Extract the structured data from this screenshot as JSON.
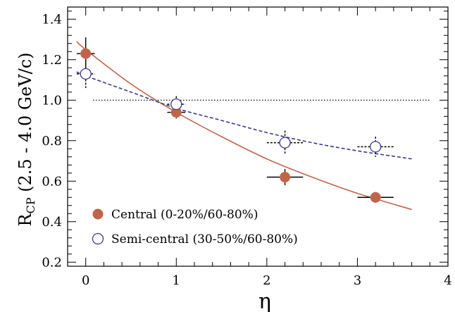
{
  "chart_data": {
    "type": "scatter",
    "title": "",
    "xlabel": "η",
    "ylabel_main": "R",
    "ylabel_sub": "CP",
    "ylabel_rest": " (2.5 - 4.0 GeV/c)",
    "xlim": [
      -0.2,
      4.0
    ],
    "ylim": [
      0.18,
      1.46
    ],
    "x_ticks": [
      0,
      1,
      2,
      3,
      4
    ],
    "y_ticks": [
      0.2,
      0.4,
      0.6,
      0.8,
      1.0,
      1.2,
      1.4
    ],
    "x_tick_labels": [
      "0",
      "1",
      "2",
      "3",
      "4"
    ],
    "y_tick_labels": [
      "0.2",
      "0.4",
      "0.6",
      "0.8",
      "1.0",
      "1.2",
      "1.4"
    ],
    "grid": false,
    "legend_position": "bottom-left",
    "reference_line": {
      "y": 1.0,
      "x_range": [
        -0.2,
        3.8
      ],
      "style": "dotted"
    },
    "colors": {
      "central": "#c0654a",
      "semicentral": "#3a3a8c",
      "axis": "#000000"
    },
    "series": [
      {
        "name": "Central (0-20%/60-80%)",
        "marker": "filled-circle",
        "x": [
          0,
          1,
          2.2,
          3.2
        ],
        "y": [
          1.23,
          0.94,
          0.62,
          0.52
        ],
        "yerr": [
          0.08,
          0.03,
          0.04,
          0.015
        ],
        "xerr": [
          0.1,
          0.1,
          0.2,
          0.2
        ]
      },
      {
        "name": "Semi-central (30-50%/60-80%)",
        "marker": "open-circle",
        "x": [
          0,
          1,
          2.2,
          3.2
        ],
        "y": [
          1.13,
          0.98,
          0.79,
          0.77
        ],
        "yerr": [
          0.07,
          0.04,
          0.06,
          0.05
        ],
        "xerr": [
          0.1,
          0.1,
          0.2,
          0.2
        ]
      }
    ],
    "fits": [
      {
        "series": "Central (0-20%/60-80%)",
        "style": "solid",
        "x": [
          -0.1,
          0.0,
          0.5,
          1.0,
          1.5,
          2.0,
          2.5,
          3.0,
          3.6
        ],
        "y": [
          1.29,
          1.25,
          1.08,
          0.94,
          0.82,
          0.71,
          0.62,
          0.54,
          0.46
        ]
      },
      {
        "series": "Semi-central (30-50%/60-80%)",
        "style": "dashed",
        "x": [
          -0.1,
          0.0,
          0.5,
          1.0,
          1.5,
          2.0,
          2.5,
          3.0,
          3.6
        ],
        "y": [
          1.14,
          1.12,
          1.04,
          0.96,
          0.9,
          0.84,
          0.79,
          0.75,
          0.71
        ]
      }
    ]
  }
}
